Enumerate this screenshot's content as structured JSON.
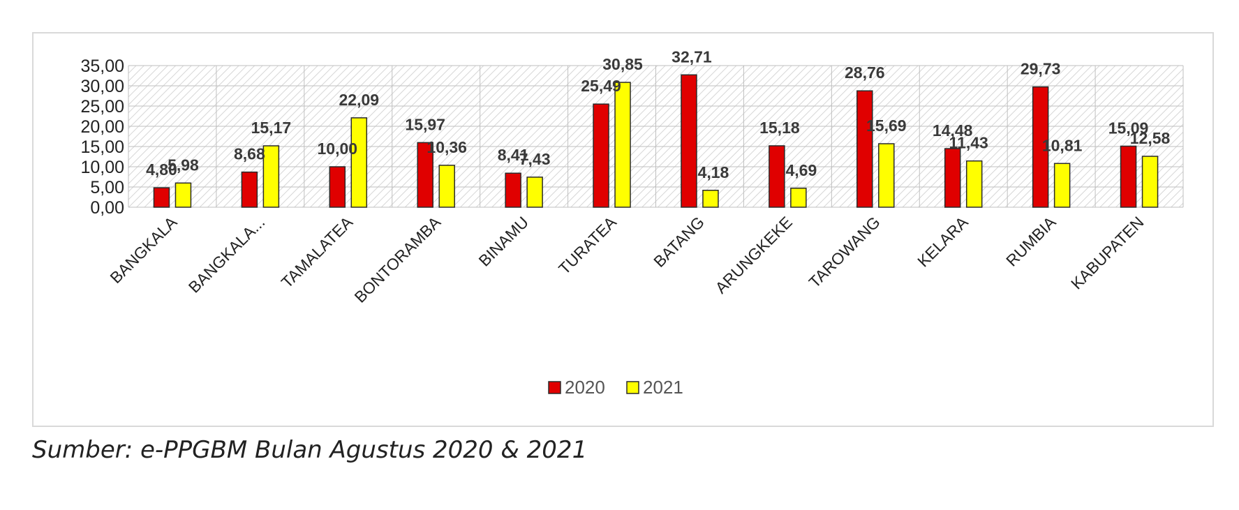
{
  "chart_data": {
    "type": "bar",
    "categories": [
      "BANGKALA",
      "BANGKALA...",
      "TAMALATEA",
      "BONTORAMBA",
      "BINAMU",
      "TURATEA",
      "BATANG",
      "ARUNGKEKE",
      "TAROWANG",
      "KELARA",
      "RUMBIA",
      "KABUPATEN"
    ],
    "series": [
      {
        "name": "2020",
        "color": "#e00000",
        "values": [
          4.8,
          8.68,
          10.0,
          15.97,
          8.41,
          25.49,
          32.71,
          15.18,
          28.76,
          14.48,
          29.73,
          15.09
        ],
        "labels": [
          "4,80",
          "8,68",
          "10,00",
          "15,97",
          "8,41",
          "25,49",
          "32,71",
          "15,18",
          "28,76",
          "14,48",
          "29,73",
          "15,09"
        ]
      },
      {
        "name": "2021",
        "color": "#ffff00",
        "values": [
          5.98,
          15.17,
          22.09,
          10.36,
          7.43,
          30.85,
          4.18,
          4.69,
          15.69,
          11.43,
          10.81,
          12.58
        ],
        "labels": [
          "5,98",
          "15,17",
          "22,09",
          "10,36",
          "7,43",
          "30,85",
          "4,18",
          "4,69",
          "15,69",
          "11,43",
          "10,81",
          "12,58"
        ]
      }
    ],
    "ylim": [
      0,
      35
    ],
    "yticks": [
      0,
      5,
      10,
      15,
      20,
      25,
      30,
      35
    ],
    "ytick_labels": [
      "0,00",
      "5,00",
      "10,00",
      "15,00",
      "20,00",
      "25,00",
      "30,00",
      "35,00"
    ],
    "title": "",
    "xlabel": "",
    "ylabel": "",
    "grid": true,
    "legend_position": "bottom-center"
  },
  "source_note": "Sumber: e-PPGBM Bulan Agustus 2020 & 2021"
}
